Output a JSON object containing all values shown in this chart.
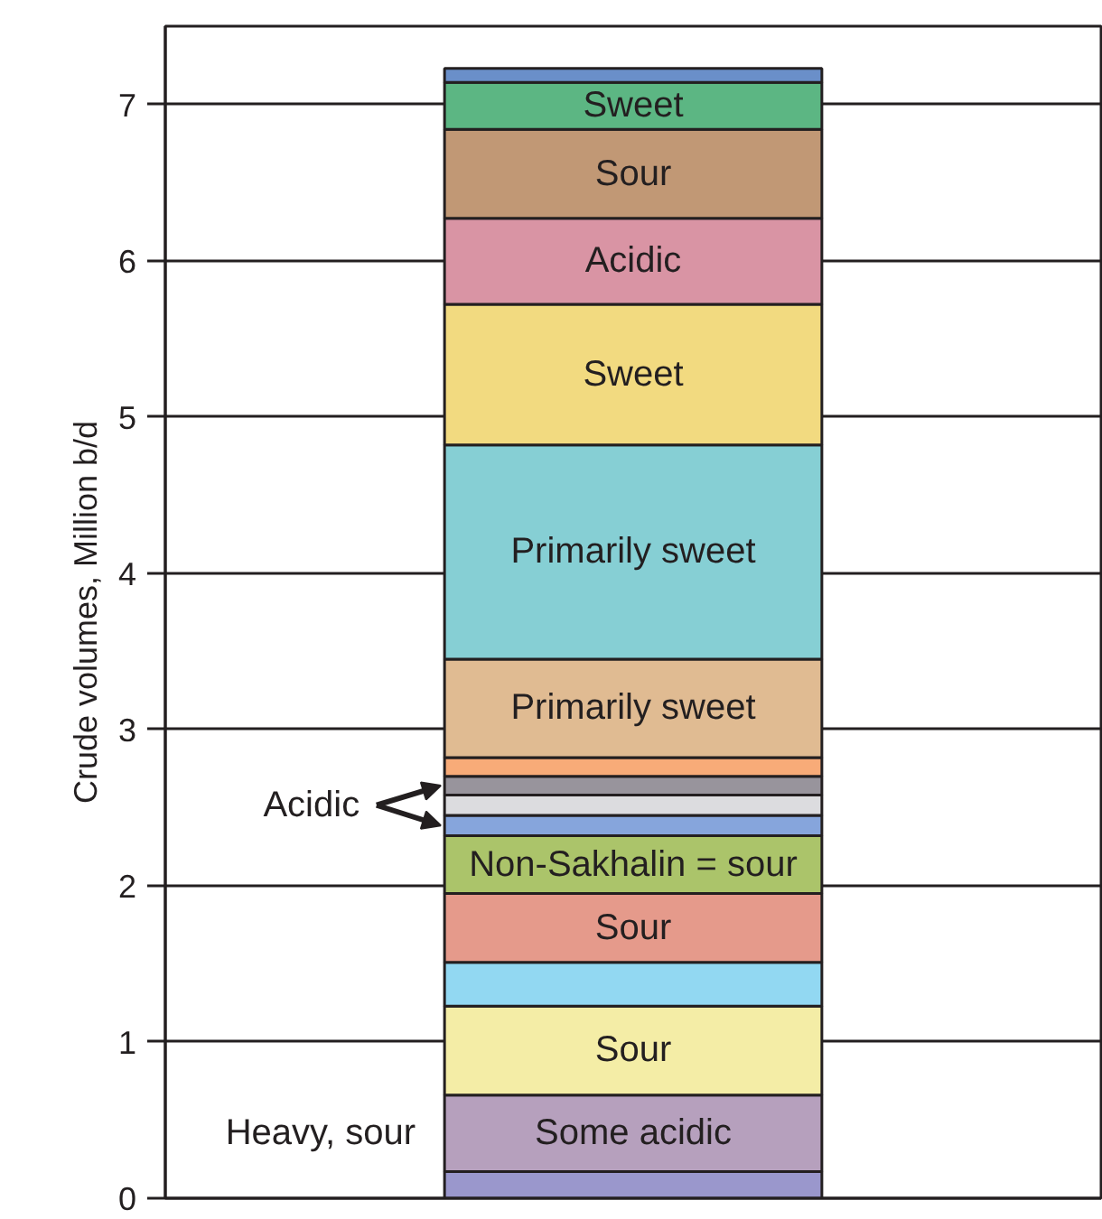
{
  "chart_data": {
    "type": "bar",
    "stacked": true,
    "categories": [
      null
    ],
    "ylabel": "Crude volumes, Million b/d",
    "ylim": [
      0,
      7.5
    ],
    "yticks": [
      0,
      1,
      2,
      3,
      4,
      5,
      6,
      7
    ],
    "grid": "y",
    "series": [
      {
        "color": "#9a97cc",
        "values": [
          0.17
        ]
      },
      {
        "name": "Some acidic",
        "color": "#b6a0bd",
        "values": [
          0.49
        ]
      },
      {
        "name": "Sour",
        "color": "#f4eda6",
        "values": [
          0.57
        ]
      },
      {
        "color": "#92d8f2",
        "values": [
          0.28
        ]
      },
      {
        "name": "Sour",
        "color": "#e59a8b",
        "values": [
          0.44
        ]
      },
      {
        "name": "Non-Sakhalin = sour",
        "color": "#abc46a",
        "values": [
          0.37
        ]
      },
      {
        "color": "#86a5dc",
        "values": [
          0.13
        ]
      },
      {
        "color": "#dcdcdf",
        "values": [
          0.13
        ]
      },
      {
        "color": "#98949c",
        "values": [
          0.12
        ]
      },
      {
        "color": "#f8ab78",
        "values": [
          0.12
        ]
      },
      {
        "name": "Primarily sweet",
        "color": "#e0bb92",
        "values": [
          0.63
        ]
      },
      {
        "name": "Primarily sweet",
        "color": "#86cfd4",
        "values": [
          1.37
        ]
      },
      {
        "name": "Sweet",
        "color": "#f2da80",
        "values": [
          0.9
        ]
      },
      {
        "name": "Acidic",
        "color": "#d994a4",
        "values": [
          0.55
        ]
      },
      {
        "name": "Sour",
        "color": "#c19875",
        "values": [
          0.57
        ]
      },
      {
        "name": "Sweet",
        "color": "#5cb683",
        "values": [
          0.3
        ]
      },
      {
        "color": "#6a8fc9",
        "values": [
          0.09
        ]
      }
    ],
    "annotations": [
      "Acidic",
      "Heavy, sour"
    ]
  }
}
